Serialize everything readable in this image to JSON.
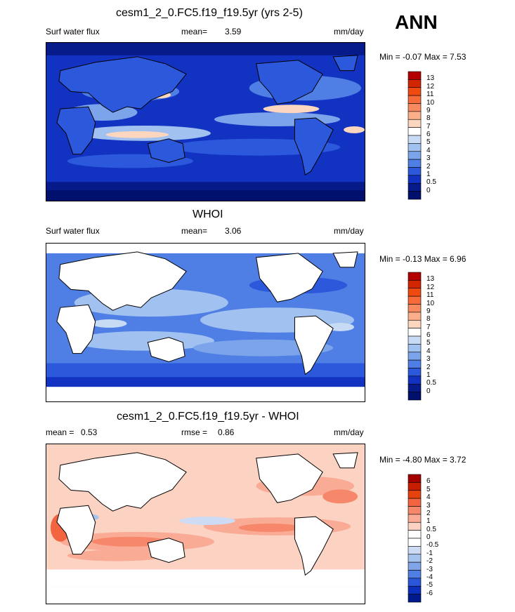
{
  "season": "ANN",
  "units": "mm/day",
  "panels": [
    {
      "title": "cesm1_2_0.FC5.f19_f19.5yr (yrs 2-5)",
      "left_label": "Surf water flux",
      "stat_label": "mean=",
      "stat_value": "3.59",
      "units": "mm/day",
      "minmax": "Min =  -0.07 Max =   7.53",
      "land": "model",
      "levels": [
        "13",
        "12",
        "11",
        "10",
        "9",
        "8",
        "7",
        "6",
        "5",
        "4",
        "3",
        "2",
        "1",
        "0.5",
        "0"
      ],
      "colors": [
        "#b40000",
        "#d22600",
        "#f04a10",
        "#f76a3a",
        "#f98a60",
        "#fbae8a",
        "#fdd6bf",
        "#ffffff",
        "#c8dbf5",
        "#a1c1f0",
        "#7ca4ea",
        "#4f7fe4",
        "#2c59dc",
        "#1233c2",
        "#061a8a",
        "#00106c"
      ]
    },
    {
      "title": "WHOI",
      "left_label": "Surf water flux",
      "stat_label": "mean=",
      "stat_value": "3.06",
      "units": "mm/day",
      "minmax": "Min =  -0.13 Max =   6.96",
      "land": "white",
      "levels": [
        "13",
        "12",
        "11",
        "10",
        "9",
        "8",
        "7",
        "6",
        "5",
        "4",
        "3",
        "2",
        "1",
        "0.5",
        "0"
      ],
      "colors": [
        "#b40000",
        "#d22600",
        "#f04a10",
        "#f76a3a",
        "#f98a60",
        "#fbae8a",
        "#fdd6bf",
        "#ffffff",
        "#c8dbf5",
        "#a1c1f0",
        "#7ca4ea",
        "#4f7fe4",
        "#2c59dc",
        "#1233c2",
        "#061a8a",
        "#00106c"
      ]
    },
    {
      "title": "cesm1_2_0.FC5.f19_f19.5yr - WHOI",
      "left_label": "mean =",
      "left_value": "0.53",
      "stat_label": "rmse =",
      "stat_value": "0.86",
      "units": "mm/day",
      "minmax": "Min =  -4.80 Max =   3.72",
      "land": "white",
      "levels": [
        "6",
        "5",
        "4",
        "3",
        "2",
        "1",
        "0.5",
        "0",
        "-0.5",
        "-1",
        "-2",
        "-3",
        "-4",
        "-5",
        "-6"
      ],
      "colors": [
        "#a50000",
        "#c81e00",
        "#e6420e",
        "#f26540",
        "#f6876a",
        "#f9ab95",
        "#fcd2c2",
        "#ffffff",
        "#ffffff",
        "#cddcf4",
        "#a6c2ee",
        "#7fa4e8",
        "#4f7fe2",
        "#2a56d8",
        "#0d2fbe",
        "#001a8c"
      ]
    }
  ]
}
